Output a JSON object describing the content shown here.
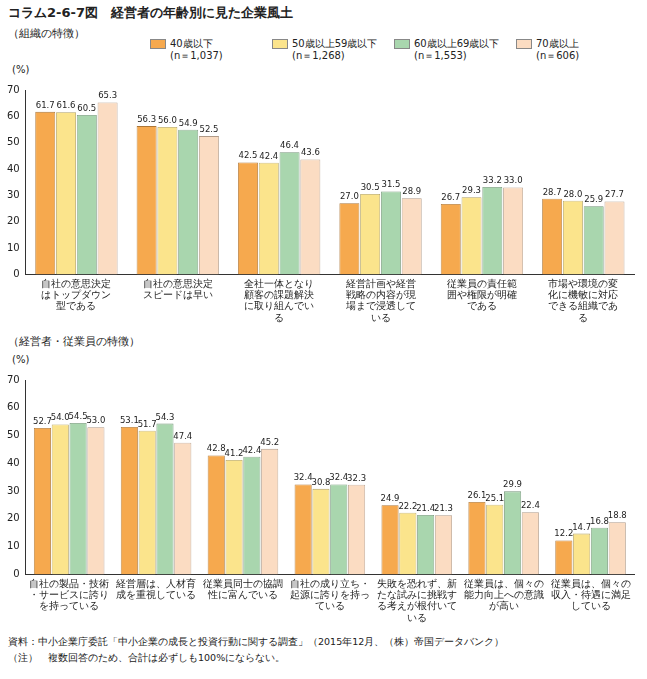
{
  "title": "コラム2-6-7図　経営者の年齢別に見た企業風土",
  "chart_data": [
    {
      "type": "bar",
      "title": "（組織の特徴）",
      "ylabel": "(%)",
      "categories": [
        "自社の意思決定はトップダウン型である",
        "自社の意思決定スピードは早い",
        "全社一体となり顧客の課題解決に取り組んでいる",
        "経営計画や経営戦略の内容が現場まで浸透している",
        "従業員の責任範囲や権限が明確である",
        "市場や環境の変化に機敏に対応できる組織である"
      ],
      "series": [
        {
          "name": "40歳以下\n(n＝1,037)",
          "color": "#f6a94e",
          "values": [
            61.7,
            56.3,
            42.5,
            27.0,
            26.7,
            28.7
          ],
          "value_labels": [
            "61.7",
            "56.3",
            "42.5",
            "27.0",
            "26.7",
            "28.7"
          ]
        },
        {
          "name": "50歳以上59歳以下\n(n＝1,268)",
          "color": "#fbe48c",
          "values": [
            61.6,
            56.0,
            42.4,
            30.5,
            29.3,
            28.0
          ],
          "value_labels": [
            "61.6",
            "56.0",
            "42.4",
            "30.5",
            "29.3",
            "28.0"
          ]
        },
        {
          "name": "60歳以上69歳以下\n(n＝1,553)",
          "color": "#a9d6ae",
          "values": [
            60.5,
            54.9,
            46.4,
            31.5,
            33.2,
            25.9
          ],
          "value_labels": [
            "60.5",
            "54.9",
            "46.4",
            "31.5",
            "33.2",
            "25.9"
          ]
        },
        {
          "name": "70歳以上\n(n＝606)",
          "color": "#fbdcc2",
          "values": [
            65.3,
            52.5,
            43.6,
            28.9,
            33.0,
            27.7
          ],
          "value_labels": [
            "65.3",
            "52.5",
            "43.6",
            "28.9",
            "33.0",
            "27.7"
          ]
        }
      ],
      "ylim": [
        0,
        70
      ],
      "yticks": [
        0,
        10,
        20,
        30,
        40,
        50,
        60,
        70
      ],
      "grid": false,
      "data_labels": true,
      "legend": "top"
    },
    {
      "type": "bar",
      "title": "（経営者・従業員の特徴）",
      "ylabel": "(%)",
      "categories": [
        "自社の製品・技術・サービスに誇りを持っている",
        "経営層は、人材育成を重視している",
        "従業員同士の協調性に富んでいる",
        "自社の成り立ち・起源に誇りを持っている",
        "失敗を恐れず、新たな試みに挑戦する考えが根付いている",
        "従業員は、個々の能力向上への意識が高い",
        "従業員は、個々の収入・待遇に満足している"
      ],
      "series": [
        {
          "name": "40歳以下\n(n＝1,037)",
          "color": "#f6a94e",
          "values": [
            52.7,
            53.1,
            42.8,
            32.4,
            24.9,
            26.1,
            12.2
          ],
          "value_labels": [
            "52.7",
            "53.1",
            "42.8",
            "32.4",
            "24.9",
            "26.1",
            "12.2"
          ]
        },
        {
          "name": "50歳以上59歳以下\n(n＝1,268)",
          "color": "#fbe48c",
          "values": [
            54.0,
            51.7,
            41.2,
            30.8,
            22.2,
            25.1,
            14.7
          ],
          "value_labels": [
            "54.0",
            "51.7",
            "41.2",
            "30.8",
            "22.2",
            "25.1",
            "14.7"
          ]
        },
        {
          "name": "60歳以上69歳以下\n(n＝1,553)",
          "color": "#a9d6ae",
          "values": [
            54.5,
            54.3,
            42.4,
            32.4,
            21.4,
            29.9,
            16.8
          ],
          "value_labels": [
            "54.5",
            "54.3",
            "42.4",
            "32.4",
            "21.4",
            "29.9",
            "16.8"
          ]
        },
        {
          "name": "70歳以上\n(n＝606)",
          "color": "#fbdcc2",
          "values": [
            53.0,
            47.4,
            45.2,
            32.3,
            21.3,
            22.4,
            18.8
          ],
          "value_labels": [
            "53.0",
            "47.4",
            "45.2",
            "32.3",
            "21.3",
            "22.4",
            "18.8"
          ]
        }
      ],
      "ylim": [
        0,
        70
      ],
      "yticks": [
        0,
        10,
        20,
        30,
        40,
        50,
        60,
        70
      ],
      "grid": false,
      "data_labels": true
    }
  ],
  "source": "資料：中小企業庁委託「中小企業の成長と投資行動に関する調査」（2015年12月、（株）帝国データバンク）",
  "note": "（注）　複数回答のため、合計は必ずしも100%にならない。"
}
